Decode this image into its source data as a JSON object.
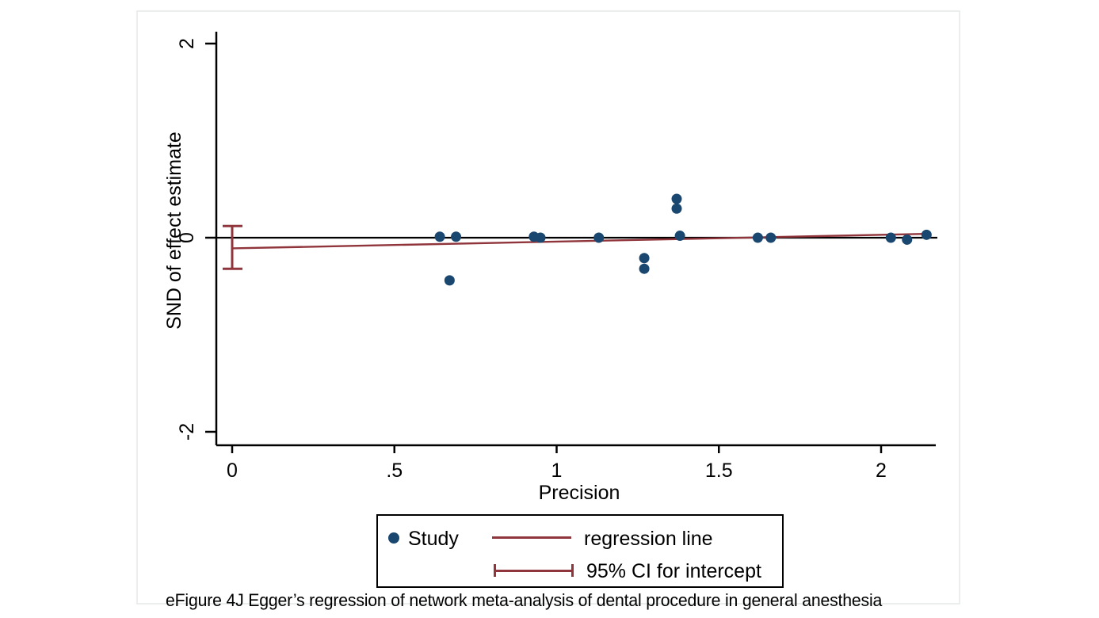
{
  "figure": {
    "caption": "eFigure 4J Egger’s regression of network meta-analysis of dental procedure in general anesthesia"
  },
  "chart_data": {
    "type": "scatter",
    "title": "",
    "xlabel": "Precision",
    "ylabel": "SND of effect estimate",
    "xlim": [
      -0.05,
      2.17
    ],
    "ylim": [
      -2.14,
      2.12
    ],
    "grid": false,
    "legend_position": "bottom",
    "x_ticks": [
      {
        "v": 0,
        "label": "0"
      },
      {
        "v": 0.5,
        "label": ".5"
      },
      {
        "v": 1,
        "label": "1"
      },
      {
        "v": 1.5,
        "label": "1.5"
      },
      {
        "v": 2,
        "label": "2"
      }
    ],
    "y_ticks": [
      {
        "v": -2,
        "label": "-2"
      },
      {
        "v": 0,
        "label": "0"
      },
      {
        "v": 2,
        "label": "2"
      }
    ],
    "series": [
      {
        "name": "Study",
        "marker": "dot",
        "points": [
          [
            0.64,
            0.01
          ],
          [
            0.67,
            -0.44
          ],
          [
            0.69,
            0.01
          ],
          [
            0.93,
            0.01
          ],
          [
            0.95,
            0.0
          ],
          [
            1.13,
            0.0
          ],
          [
            1.27,
            -0.21
          ],
          [
            1.27,
            -0.32
          ],
          [
            1.37,
            0.4
          ],
          [
            1.37,
            0.3
          ],
          [
            1.38,
            0.02
          ],
          [
            1.62,
            0.0
          ],
          [
            1.66,
            0.0
          ],
          [
            2.03,
            0.0
          ],
          [
            2.08,
            -0.02
          ],
          [
            2.14,
            0.03
          ]
        ]
      }
    ],
    "regression_line": {
      "x0": 0,
      "y0": -0.11,
      "x1": 2.15,
      "y1": 0.04
    },
    "ci_for_intercept": {
      "x": 0,
      "low": -0.32,
      "high": 0.12
    },
    "reference_line_y": 0,
    "legend": [
      {
        "marker": "dot",
        "label": "Study"
      },
      {
        "marker": "line",
        "label": "regression line"
      },
      {
        "marker": "ci",
        "label": "95% CI for intercept"
      }
    ],
    "colors": {
      "point": "#1a476f",
      "regression": "#90353b",
      "axis": "#000000",
      "reference": "#000000"
    }
  }
}
